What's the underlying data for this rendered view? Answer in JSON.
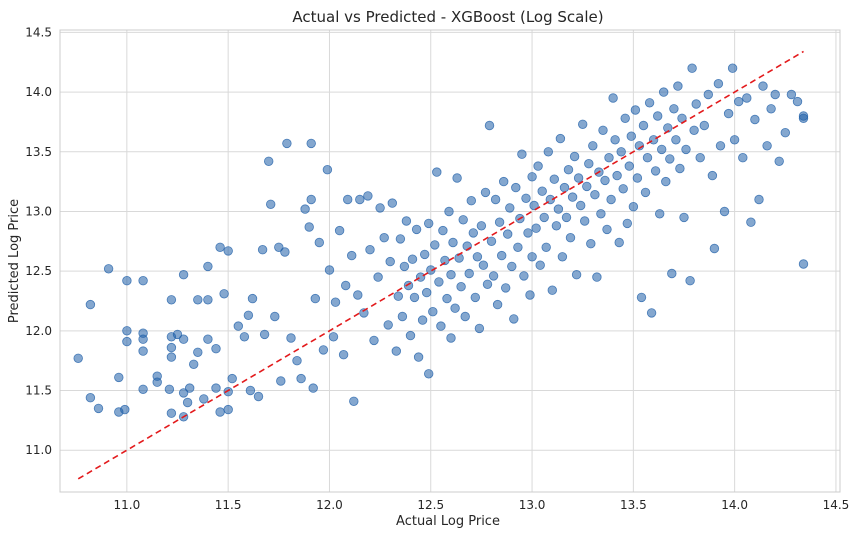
{
  "chart_data": {
    "type": "scatter",
    "title": "Actual vs Predicted - XGBoost (Log Scale)",
    "xlabel": "Actual Log Price",
    "ylabel": "Predicted Log Price",
    "xlim": [
      10.67,
      14.52
    ],
    "ylim": [
      10.65,
      14.52
    ],
    "xticks": [
      "11.0",
      "11.5",
      "12.0",
      "12.5",
      "13.0",
      "13.5",
      "14.0",
      "14.5"
    ],
    "yticks": [
      "11.0",
      "11.5",
      "12.0",
      "12.5",
      "13.0",
      "13.5",
      "14.0",
      "14.5"
    ],
    "grid": true,
    "point_color": "#1f5fa8",
    "reference_line": {
      "x": [
        10.76,
        14.34
      ],
      "y": [
        10.76,
        14.34
      ],
      "color": "#e31a1c",
      "style": "dashed"
    },
    "points": [
      [
        10.76,
        11.77
      ],
      [
        10.82,
        12.22
      ],
      [
        10.82,
        11.44
      ],
      [
        10.86,
        11.35
      ],
      [
        10.91,
        12.52
      ],
      [
        10.96,
        11.61
      ],
      [
        10.96,
        11.32
      ],
      [
        10.99,
        11.34
      ],
      [
        11.0,
        12.42
      ],
      [
        11.0,
        12.0
      ],
      [
        11.0,
        11.91
      ],
      [
        11.08,
        11.51
      ],
      [
        11.08,
        12.42
      ],
      [
        11.08,
        11.98
      ],
      [
        11.08,
        11.93
      ],
      [
        11.08,
        11.83
      ],
      [
        11.15,
        11.62
      ],
      [
        11.15,
        11.57
      ],
      [
        11.21,
        11.51
      ],
      [
        11.22,
        11.31
      ],
      [
        11.22,
        12.26
      ],
      [
        11.22,
        11.95
      ],
      [
        11.22,
        11.86
      ],
      [
        11.22,
        11.78
      ],
      [
        11.25,
        11.97
      ],
      [
        11.28,
        12.47
      ],
      [
        11.28,
        11.93
      ],
      [
        11.28,
        11.28
      ],
      [
        11.28,
        11.48
      ],
      [
        11.3,
        11.4
      ],
      [
        11.31,
        11.52
      ],
      [
        11.33,
        11.72
      ],
      [
        11.35,
        12.26
      ],
      [
        11.35,
        11.82
      ],
      [
        11.38,
        11.43
      ],
      [
        11.4,
        12.54
      ],
      [
        11.4,
        12.26
      ],
      [
        11.4,
        11.93
      ],
      [
        11.44,
        11.85
      ],
      [
        11.44,
        11.52
      ],
      [
        11.46,
        12.7
      ],
      [
        11.46,
        11.32
      ],
      [
        11.48,
        12.31
      ],
      [
        11.5,
        11.49
      ],
      [
        11.5,
        12.67
      ],
      [
        11.5,
        11.34
      ],
      [
        11.52,
        11.6
      ],
      [
        11.55,
        12.04
      ],
      [
        11.58,
        11.95
      ],
      [
        11.6,
        12.13
      ],
      [
        11.61,
        11.5
      ],
      [
        11.62,
        12.27
      ],
      [
        11.65,
        11.45
      ],
      [
        11.67,
        12.68
      ],
      [
        11.68,
        11.97
      ],
      [
        11.7,
        13.42
      ],
      [
        11.71,
        13.06
      ],
      [
        11.73,
        12.12
      ],
      [
        11.75,
        12.7
      ],
      [
        11.76,
        11.58
      ],
      [
        11.78,
        12.66
      ],
      [
        11.79,
        13.57
      ],
      [
        11.81,
        11.94
      ],
      [
        11.84,
        11.75
      ],
      [
        11.86,
        11.6
      ],
      [
        11.88,
        13.02
      ],
      [
        11.9,
        12.87
      ],
      [
        11.91,
        13.57
      ],
      [
        11.91,
        13.1
      ],
      [
        11.92,
        11.52
      ],
      [
        11.93,
        12.27
      ],
      [
        11.95,
        12.74
      ],
      [
        11.97,
        11.84
      ],
      [
        11.99,
        13.35
      ],
      [
        12.0,
        12.51
      ],
      [
        12.02,
        11.95
      ],
      [
        12.03,
        12.24
      ],
      [
        12.05,
        12.84
      ],
      [
        12.07,
        11.8
      ],
      [
        12.08,
        12.38
      ],
      [
        12.09,
        13.1
      ],
      [
        12.11,
        12.63
      ],
      [
        12.12,
        11.41
      ],
      [
        12.14,
        12.3
      ],
      [
        12.15,
        13.1
      ],
      [
        12.17,
        12.15
      ],
      [
        12.19,
        13.13
      ],
      [
        12.2,
        12.68
      ],
      [
        12.22,
        11.92
      ],
      [
        12.24,
        12.45
      ],
      [
        12.25,
        13.03
      ],
      [
        12.27,
        12.78
      ],
      [
        12.29,
        12.05
      ],
      [
        12.3,
        12.58
      ],
      [
        12.31,
        13.07
      ],
      [
        12.33,
        11.83
      ],
      [
        12.34,
        12.29
      ],
      [
        12.35,
        12.77
      ],
      [
        12.36,
        12.12
      ],
      [
        12.37,
        12.54
      ],
      [
        12.38,
        12.92
      ],
      [
        12.39,
        12.38
      ],
      [
        12.4,
        11.96
      ],
      [
        12.41,
        12.6
      ],
      [
        12.42,
        12.28
      ],
      [
        12.43,
        12.85
      ],
      [
        12.44,
        11.78
      ],
      [
        12.45,
        12.45
      ],
      [
        12.46,
        12.09
      ],
      [
        12.47,
        12.64
      ],
      [
        12.48,
        12.32
      ],
      [
        12.49,
        12.9
      ],
      [
        12.49,
        11.64
      ],
      [
        12.5,
        12.51
      ],
      [
        12.51,
        12.16
      ],
      [
        12.52,
        12.72
      ],
      [
        12.53,
        13.33
      ],
      [
        12.54,
        12.41
      ],
      [
        12.55,
        12.04
      ],
      [
        12.56,
        12.84
      ],
      [
        12.57,
        12.59
      ],
      [
        12.58,
        12.27
      ],
      [
        12.59,
        13.0
      ],
      [
        12.6,
        12.47
      ],
      [
        12.6,
        11.94
      ],
      [
        12.61,
        12.74
      ],
      [
        12.62,
        12.19
      ],
      [
        12.63,
        13.28
      ],
      [
        12.64,
        12.61
      ],
      [
        12.65,
        12.37
      ],
      [
        12.66,
        12.93
      ],
      [
        12.67,
        12.12
      ],
      [
        12.68,
        12.71
      ],
      [
        12.69,
        12.48
      ],
      [
        12.7,
        13.09
      ],
      [
        12.71,
        12.82
      ],
      [
        12.72,
        12.28
      ],
      [
        12.73,
        12.62
      ],
      [
        12.74,
        12.02
      ],
      [
        12.75,
        12.88
      ],
      [
        12.76,
        12.55
      ],
      [
        12.77,
        13.16
      ],
      [
        12.78,
        12.39
      ],
      [
        12.79,
        13.72
      ],
      [
        12.8,
        12.75
      ],
      [
        12.81,
        12.46
      ],
      [
        12.82,
        13.1
      ],
      [
        12.83,
        12.22
      ],
      [
        12.84,
        12.91
      ],
      [
        12.85,
        12.63
      ],
      [
        12.86,
        13.25
      ],
      [
        12.87,
        12.36
      ],
      [
        12.88,
        12.81
      ],
      [
        12.89,
        13.03
      ],
      [
        12.9,
        12.54
      ],
      [
        12.91,
        12.1
      ],
      [
        12.92,
        13.2
      ],
      [
        12.93,
        12.7
      ],
      [
        12.94,
        12.94
      ],
      [
        12.95,
        13.48
      ],
      [
        12.96,
        12.46
      ],
      [
        12.97,
        13.11
      ],
      [
        12.98,
        12.82
      ],
      [
        12.99,
        12.3
      ],
      [
        13.0,
        13.29
      ],
      [
        13.0,
        12.62
      ],
      [
        13.01,
        13.05
      ],
      [
        13.02,
        12.86
      ],
      [
        13.03,
        13.38
      ],
      [
        13.04,
        12.55
      ],
      [
        13.05,
        13.17
      ],
      [
        13.06,
        12.95
      ],
      [
        13.07,
        12.7
      ],
      [
        13.08,
        13.5
      ],
      [
        13.09,
        13.1
      ],
      [
        13.1,
        12.34
      ],
      [
        13.11,
        13.27
      ],
      [
        13.12,
        12.88
      ],
      [
        13.13,
        13.02
      ],
      [
        13.14,
        13.61
      ],
      [
        13.15,
        12.62
      ],
      [
        13.16,
        13.2
      ],
      [
        13.17,
        12.95
      ],
      [
        13.18,
        13.35
      ],
      [
        13.19,
        12.78
      ],
      [
        13.2,
        13.12
      ],
      [
        13.21,
        13.46
      ],
      [
        13.22,
        12.47
      ],
      [
        13.23,
        13.28
      ],
      [
        13.24,
        13.05
      ],
      [
        13.25,
        13.73
      ],
      [
        13.26,
        12.92
      ],
      [
        13.27,
        13.21
      ],
      [
        13.28,
        13.4
      ],
      [
        13.29,
        12.73
      ],
      [
        13.3,
        13.55
      ],
      [
        13.31,
        13.14
      ],
      [
        13.32,
        12.45
      ],
      [
        13.33,
        13.33
      ],
      [
        13.34,
        12.98
      ],
      [
        13.35,
        13.68
      ],
      [
        13.36,
        13.26
      ],
      [
        13.37,
        12.85
      ],
      [
        13.38,
        13.45
      ],
      [
        13.39,
        13.1
      ],
      [
        13.4,
        13.95
      ],
      [
        13.41,
        13.6
      ],
      [
        13.42,
        13.3
      ],
      [
        13.43,
        12.74
      ],
      [
        13.44,
        13.5
      ],
      [
        13.45,
        13.19
      ],
      [
        13.46,
        13.78
      ],
      [
        13.47,
        12.9
      ],
      [
        13.48,
        13.38
      ],
      [
        13.49,
        13.63
      ],
      [
        13.5,
        13.04
      ],
      [
        13.51,
        13.85
      ],
      [
        13.52,
        13.28
      ],
      [
        13.53,
        13.55
      ],
      [
        13.54,
        12.28
      ],
      [
        13.55,
        13.72
      ],
      [
        13.56,
        13.16
      ],
      [
        13.57,
        13.45
      ],
      [
        13.58,
        13.91
      ],
      [
        13.59,
        12.15
      ],
      [
        13.6,
        13.6
      ],
      [
        13.61,
        13.34
      ],
      [
        13.62,
        13.8
      ],
      [
        13.63,
        12.98
      ],
      [
        13.64,
        13.52
      ],
      [
        13.65,
        14.0
      ],
      [
        13.66,
        13.25
      ],
      [
        13.67,
        13.7
      ],
      [
        13.68,
        13.44
      ],
      [
        13.69,
        12.48
      ],
      [
        13.7,
        13.86
      ],
      [
        13.71,
        13.6
      ],
      [
        13.72,
        14.05
      ],
      [
        13.73,
        13.36
      ],
      [
        13.74,
        13.78
      ],
      [
        13.75,
        12.95
      ],
      [
        13.76,
        13.52
      ],
      [
        13.78,
        12.42
      ],
      [
        13.79,
        14.2
      ],
      [
        13.8,
        13.68
      ],
      [
        13.81,
        13.9
      ],
      [
        13.83,
        13.45
      ],
      [
        13.85,
        13.72
      ],
      [
        13.87,
        13.98
      ],
      [
        13.89,
        13.3
      ],
      [
        13.9,
        12.69
      ],
      [
        13.92,
        14.07
      ],
      [
        13.93,
        13.55
      ],
      [
        13.95,
        13.0
      ],
      [
        13.97,
        13.82
      ],
      [
        13.99,
        14.2
      ],
      [
        14.0,
        13.6
      ],
      [
        14.02,
        13.92
      ],
      [
        14.04,
        13.45
      ],
      [
        14.06,
        13.95
      ],
      [
        14.08,
        12.91
      ],
      [
        14.1,
        13.77
      ],
      [
        14.12,
        13.1
      ],
      [
        14.14,
        14.05
      ],
      [
        14.16,
        13.55
      ],
      [
        14.18,
        13.86
      ],
      [
        14.2,
        13.98
      ],
      [
        14.22,
        13.42
      ],
      [
        14.25,
        13.66
      ],
      [
        14.28,
        13.98
      ],
      [
        14.31,
        13.92
      ],
      [
        14.34,
        12.56
      ],
      [
        14.34,
        13.8
      ],
      [
        14.34,
        13.78
      ]
    ]
  }
}
